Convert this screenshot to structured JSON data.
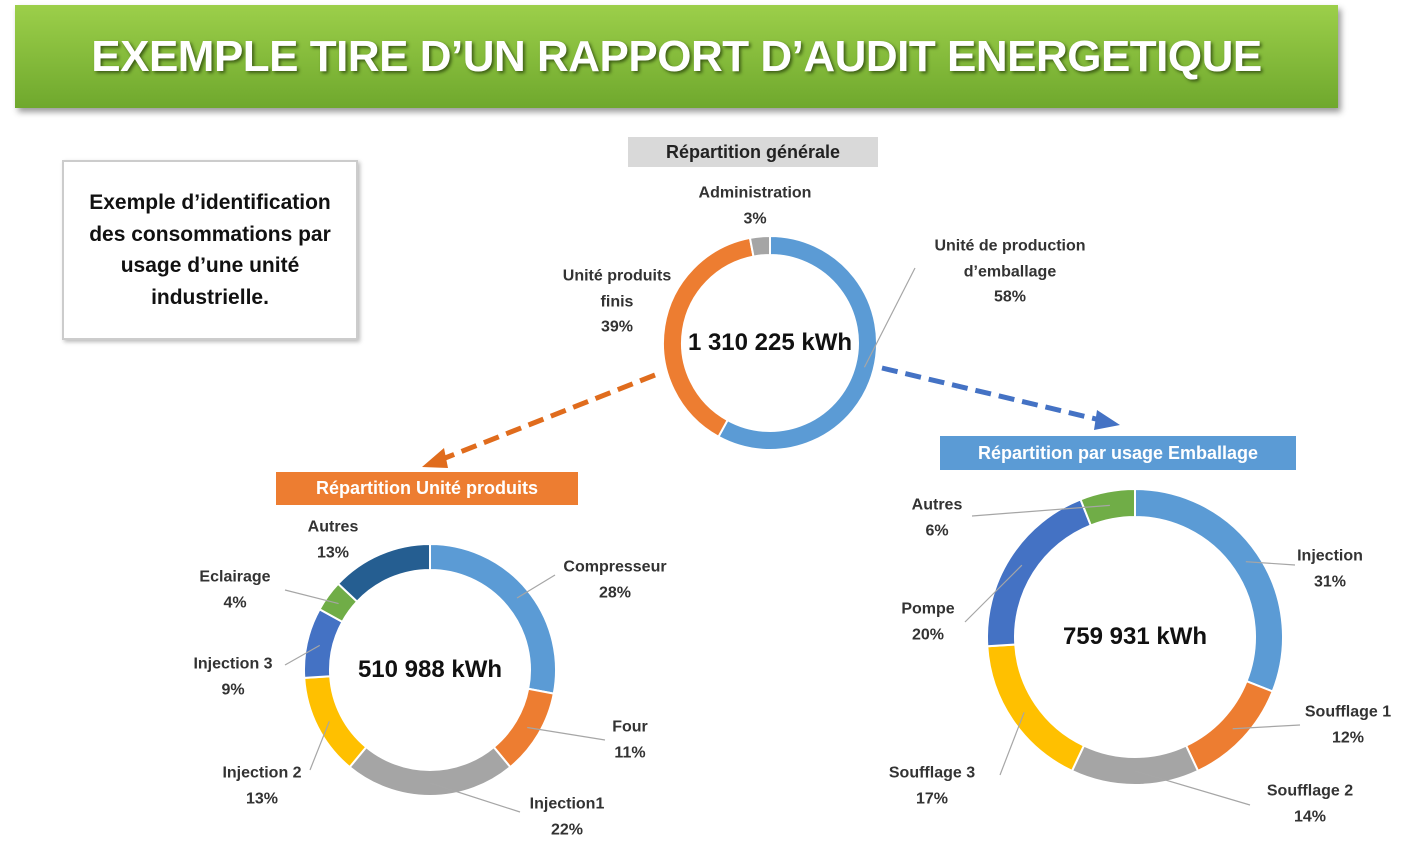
{
  "title": "EXEMPLE TIRE D’UN RAPPORT D’AUDIT ENERGETIQUE",
  "note": "Exemple d’identification des consommations par usage d’une unité industrielle.",
  "chart_data": [
    {
      "type": "donut",
      "title": "Répartition générale",
      "center_text": "1 310 225 kWh",
      "categories": [
        "Unité de production d’emballage",
        "Unité produits finis",
        "Administration"
      ],
      "values": [
        58,
        39,
        3
      ],
      "value_labels": [
        "58%",
        "39%",
        "3%"
      ],
      "colors": [
        "#5b9bd5",
        "#ed7d31",
        "#a5a5a5"
      ]
    },
    {
      "type": "donut",
      "title": "Répartition Unité produits",
      "center_text": "510 988 kWh",
      "categories": [
        "Compresseur",
        "Four",
        "Injection1",
        "Injection 2",
        "Injection 3",
        "Eclairage",
        "Autres"
      ],
      "values": [
        28,
        11,
        22,
        13,
        9,
        4,
        13
      ],
      "value_labels": [
        "28%",
        "11%",
        "22%",
        "13%",
        "9%",
        "4%",
        "13%"
      ],
      "colors": [
        "#5b9bd5",
        "#ed7d31",
        "#a5a5a5",
        "#ffc000",
        "#4472c4",
        "#70ad47",
        "#255e91"
      ]
    },
    {
      "type": "donut",
      "title": "Répartition par usage Emballage",
      "center_text": "759 931 kWh",
      "categories": [
        "Injection",
        "Soufflage 1",
        "Soufflage 2",
        "Soufflage 3",
        "Pompe",
        "Autres"
      ],
      "values": [
        31,
        12,
        14,
        17,
        20,
        6
      ],
      "value_labels": [
        "31%",
        "12%",
        "14%",
        "17%",
        "20%",
        "6%"
      ],
      "colors": [
        "#5b9bd5",
        "#ed7d31",
        "#a5a5a5",
        "#ffc000",
        "#4472c4",
        "#70ad47"
      ]
    }
  ]
}
